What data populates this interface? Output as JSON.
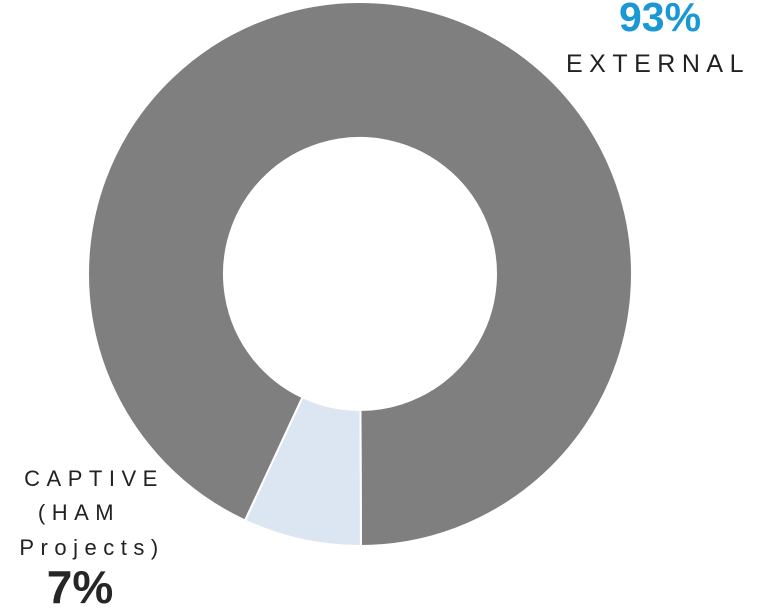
{
  "chart_data": {
    "type": "pie",
    "donut": true,
    "categories": [
      "EXTERNAL",
      "CAPTIVE (HAM Projects)"
    ],
    "values": [
      93,
      7
    ],
    "colors": [
      "#7f7f7f",
      "#dce6f2"
    ],
    "labels": {
      "external_pct": "93%",
      "external_name": "EXTERNAL",
      "captive_name_lines": [
        "CAPTIVE",
        "(HAM",
        "Projects)"
      ],
      "captive_pct": "7%"
    },
    "accent_color": "#1a97d5"
  }
}
